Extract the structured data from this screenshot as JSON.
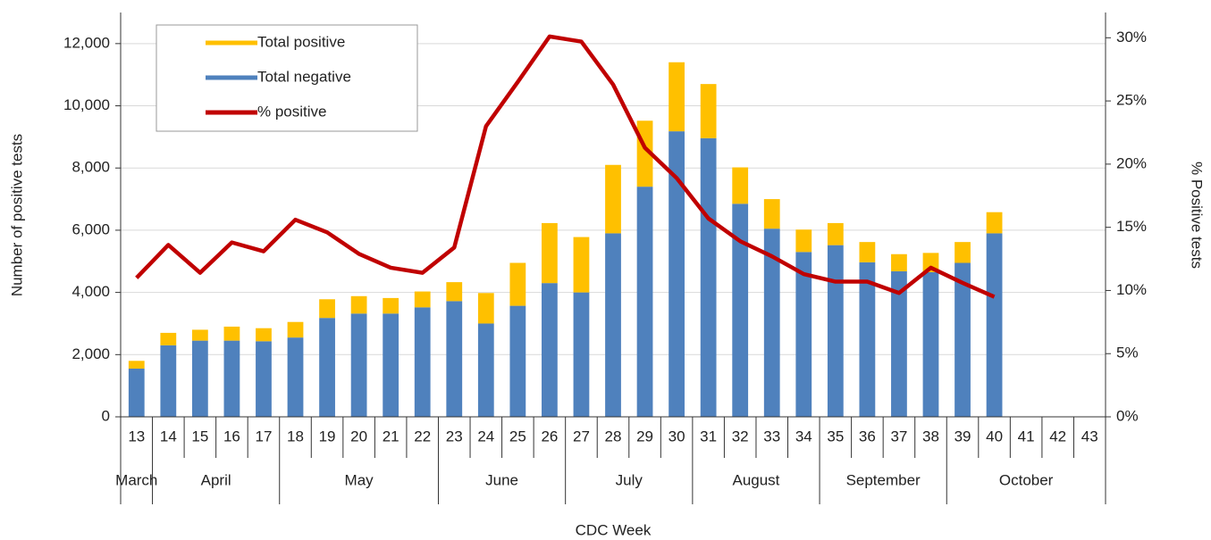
{
  "chart_data": {
    "type": "bar",
    "x_label": "CDC Week",
    "y_label": "Number of positive tests",
    "y2_label": "% Positive tests",
    "categories": [
      "13",
      "14",
      "15",
      "16",
      "17",
      "18",
      "19",
      "20",
      "21",
      "22",
      "23",
      "24",
      "25",
      "26",
      "27",
      "28",
      "29",
      "30",
      "31",
      "32",
      "33",
      "34",
      "35",
      "36",
      "37",
      "38",
      "39",
      "40",
      "41",
      "42",
      "43"
    ],
    "month_spans": [
      {
        "label": "March",
        "weeks": 1
      },
      {
        "label": "April",
        "weeks": 4
      },
      {
        "label": "May",
        "weeks": 5
      },
      {
        "label": "June",
        "weeks": 4
      },
      {
        "label": "July",
        "weeks": 4
      },
      {
        "label": "August",
        "weeks": 4
      },
      {
        "label": "September",
        "weeks": 4
      },
      {
        "label": "October",
        "weeks": 5
      }
    ],
    "stacked": true,
    "series": [
      {
        "name": "Total positive",
        "color": "#FFC000",
        "type": "bar",
        "values": [
          250,
          400,
          350,
          450,
          420,
          500,
          600,
          560,
          500,
          510,
          610,
          980,
          1380,
          1930,
          1780,
          2200,
          2120,
          2220,
          1740,
          1170,
          950,
          720,
          710,
          650,
          550,
          620,
          670,
          680,
          null,
          null,
          null
        ]
      },
      {
        "name": "Total negative",
        "color": "#4F81BD",
        "type": "bar",
        "values": [
          1550,
          2300,
          2450,
          2450,
          2430,
          2550,
          3180,
          3320,
          3320,
          3520,
          3720,
          3000,
          3570,
          4300,
          4000,
          5900,
          7400,
          9180,
          8960,
          6850,
          6050,
          5300,
          5520,
          4970,
          4680,
          4650,
          4950,
          5900,
          null,
          null,
          null
        ]
      },
      {
        "name": "% positive",
        "color": "#C00000",
        "type": "line",
        "axis": "y2",
        "values": [
          11.0,
          13.6,
          11.4,
          13.8,
          13.1,
          15.6,
          14.6,
          12.9,
          11.8,
          11.4,
          13.4,
          23.0,
          26.5,
          30.1,
          29.7,
          26.3,
          21.3,
          18.9,
          15.7,
          13.9,
          12.7,
          11.3,
          10.7,
          10.7,
          9.8,
          11.8,
          10.6,
          9.5,
          null,
          null,
          null
        ]
      }
    ],
    "ylim": [
      0,
      13000
    ],
    "yticks": [
      0,
      {
        "value": 2000,
        "label": "2,000"
      },
      {
        "value": 4000,
        "label": "4,000"
      },
      {
        "value": 6000,
        "label": "6,000"
      },
      {
        "value": 8000,
        "label": "8,000"
      },
      {
        "value": 10000,
        "label": "10,000"
      },
      {
        "value": 12000,
        "label": "12,000"
      }
    ],
    "y2lim": [
      0,
      32
    ],
    "y2ticks": [
      {
        "value": 0,
        "label": "0%"
      },
      {
        "value": 5,
        "label": "5%"
      },
      {
        "value": 10,
        "label": "10%"
      },
      {
        "value": 15,
        "label": "15%"
      },
      {
        "value": 20,
        "label": "20%"
      },
      {
        "value": 25,
        "label": "25%"
      },
      {
        "value": 30,
        "label": "30%"
      }
    ],
    "grid": true,
    "legend": "upper left"
  }
}
